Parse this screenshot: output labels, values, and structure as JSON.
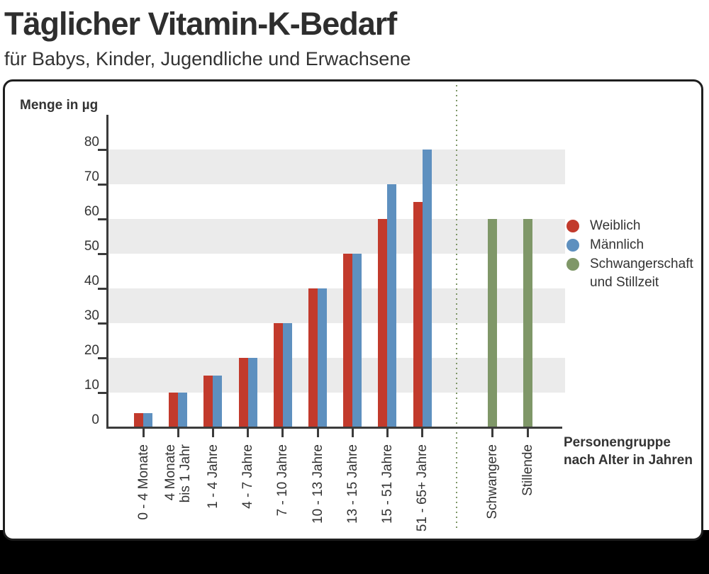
{
  "header": {
    "title": "Täglicher Vitamin-K-Bedarf",
    "subtitle": "für Babys, Kinder, Jugendliche und Erwachsene"
  },
  "axis": {
    "y_title": "Menge in µg",
    "x_title": "Personengruppe\nnach Alter in Jahren"
  },
  "legend": {
    "items": [
      {
        "label": "Weiblich",
        "color": "#c23a2c"
      },
      {
        "label": "Männlich",
        "color": "#5e90bf"
      },
      {
        "label": "Schwangerschaft\nund Stillzeit",
        "color": "#7f9768"
      }
    ]
  },
  "chart_data": {
    "type": "bar",
    "title": "Täglicher Vitamin-K-Bedarf",
    "subtitle": "für Babys, Kinder, Jugendliche und Erwachsene",
    "ylabel": "Menge in µg",
    "xlabel": "Personengruppe nach Alter in Jahren",
    "ylim": [
      0,
      80
    ],
    "yticks": [
      0,
      10,
      20,
      30,
      40,
      50,
      60,
      70,
      80
    ],
    "stripe_bands": [
      [
        10,
        20
      ],
      [
        30,
        40
      ],
      [
        50,
        60
      ],
      [
        70,
        80
      ]
    ],
    "categories": [
      "0 - 4 Monate",
      "4 Monate\nbis 1 Jahr",
      "1 - 4 Jahre",
      "4 - 7 Jahre",
      "7 - 10 Jahre",
      "10 - 13 Jahre",
      "13 - 15 Jahre",
      "15 - 51 Jahre",
      "51 - 65+ Jahre"
    ],
    "series": [
      {
        "name": "Weiblich",
        "color": "#c23a2c",
        "values": [
          4,
          10,
          15,
          20,
          30,
          40,
          50,
          60,
          65
        ]
      },
      {
        "name": "Männlich",
        "color": "#5e90bf",
        "values": [
          4,
          10,
          15,
          20,
          30,
          40,
          50,
          70,
          80
        ]
      }
    ],
    "extra_categories": [
      "Schwangere",
      "Stillende"
    ],
    "extra_series": {
      "name": "Schwangerschaft und Stillzeit",
      "color": "#7f9768",
      "values": [
        60,
        60
      ]
    },
    "colors": {
      "stripe": "#ebebeb",
      "axis": "#3b3b3b",
      "text": "#333333",
      "panel_border": "#1f1f1f",
      "separator_dots": "#7f9768"
    }
  }
}
